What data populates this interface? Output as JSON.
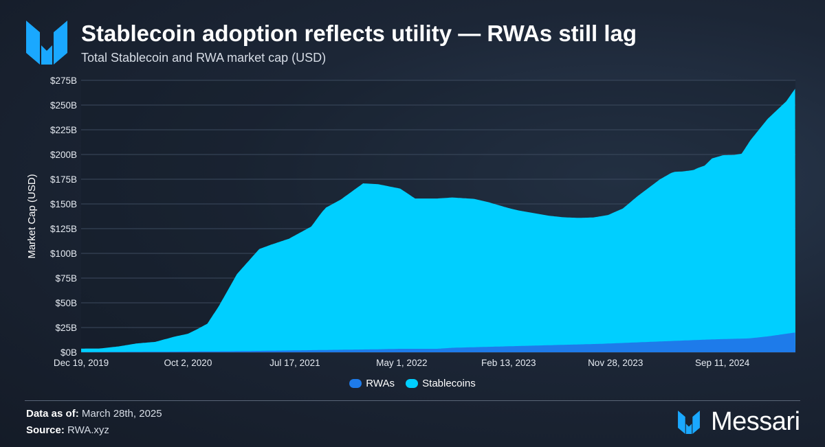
{
  "header": {
    "title": "Stablecoin adoption reflects utility — RWAs still lag",
    "subtitle": "Total Stablecoin and RWA market cap (USD)"
  },
  "footer": {
    "data_as_of_label": "Data as of:",
    "data_as_of_value": "March 28th, 2025",
    "source_label": "Source:",
    "source_value": "RWA.xyz",
    "brand": "Messari"
  },
  "colors": {
    "stablecoins": "#00cfff",
    "rwas": "#1e7bea",
    "brand": "#1aa8ff"
  },
  "chart_data": {
    "type": "area",
    "title": "Stablecoin adoption reflects utility — RWAs still lag",
    "subtitle": "Total Stablecoin and RWA market cap (USD)",
    "xlabel": "",
    "ylabel": "Market Cap (USD)",
    "ylim": [
      0,
      275
    ],
    "y_unit": "B USD",
    "y_ticks": [
      "$0B",
      "$25B",
      "$50B",
      "$75B",
      "$100B",
      "$125B",
      "$150B",
      "$175B",
      "$200B",
      "$225B",
      "$250B",
      "$275B"
    ],
    "x_ticks": [
      "Dec 19, 2019",
      "Oct 2, 2020",
      "Jul 17, 2021",
      "May 1, 2022",
      "Feb 13, 2023",
      "Nov 28, 2023",
      "Sep 11, 2024"
    ],
    "x_range": [
      "Dec 19, 2019",
      "Mar 28, 2025"
    ],
    "grid": true,
    "stacked": true,
    "legend": [
      "RWAs",
      "Stablecoins"
    ],
    "legend_position": "bottom-center",
    "series": [
      {
        "name": "Stablecoins",
        "color": "#00cfff",
        "x_days": [
          0,
          50,
          100,
          150,
          200,
          250,
          288,
          310,
          340,
          370,
          420,
          480,
          510,
          560,
          620,
          650,
          660,
          700,
          760,
          800,
          860,
          900,
          960,
          1000,
          1060,
          1100,
          1150,
          1180,
          1220,
          1260,
          1300,
          1340,
          1360,
          1380,
          1420,
          1460,
          1480,
          1500,
          1560,
          1590,
          1600,
          1620,
          1650,
          1662,
          1680,
          1700,
          1730,
          1760,
          1780,
          1803,
          1850,
          1900,
          1925
        ],
        "values": [
          3.5,
          3.5,
          5.5,
          8.5,
          10,
          15,
          18,
          22,
          28,
          45,
          78,
          103,
          107,
          113,
          125,
          140,
          144,
          152,
          168,
          167,
          162,
          152,
          152,
          152,
          150,
          146,
          140,
          137,
          134,
          131,
          129,
          128,
          128,
          128,
          130,
          136,
          142,
          148,
          164,
          170,
          171,
          171,
          172,
          174,
          176,
          183,
          186,
          186,
          187,
          200,
          220,
          235,
          247
        ]
      },
      {
        "name": "RWAs",
        "color": "#1e7bea",
        "x_days": [
          0,
          200,
          400,
          500,
          600,
          700,
          800,
          860,
          960,
          1000,
          1100,
          1200,
          1300,
          1400,
          1500,
          1600,
          1700,
          1800,
          1850,
          1925
        ],
        "values": [
          0.2,
          0.5,
          1.0,
          1.5,
          2.0,
          2.5,
          3.0,
          3.5,
          3.5,
          4.5,
          5.5,
          6.5,
          7.5,
          8.5,
          10,
          11.5,
          13,
          14,
          16,
          20
        ]
      }
    ]
  }
}
